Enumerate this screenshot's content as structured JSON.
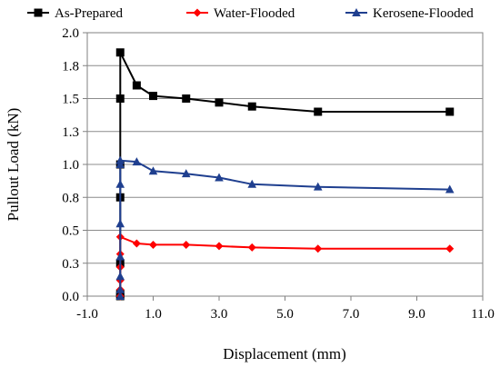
{
  "chart_data": {
    "type": "line",
    "xlabel": "Displacement   (mm)",
    "ylabel": "Pullout  Load (kN)",
    "xlim": [
      -1.0,
      11.0
    ],
    "ylim": [
      0.0,
      2.0
    ],
    "xticks": [
      -1.0,
      1.0,
      3.0,
      5.0,
      7.0,
      9.0,
      11.0
    ],
    "xtick_labels": [
      "-1.0",
      "1.0",
      "3.0",
      "5.0",
      "7.0",
      "9.0",
      "11.0"
    ],
    "yticks": [
      0.0,
      0.25,
      0.5,
      0.75,
      1.0,
      1.25,
      1.5,
      1.75,
      2.0
    ],
    "ytick_labels": [
      "0.0",
      "0.3",
      "0.5",
      "0.8",
      "1.0",
      "1.3",
      "1.5",
      "1.8",
      "2.0"
    ],
    "grid": "horizontal",
    "legend_position": "top",
    "series": [
      {
        "name": "As-Prepared",
        "color": "#000000",
        "marker": "square",
        "x": [
          0,
          0,
          0,
          0,
          0,
          0,
          0,
          0.5,
          1,
          2,
          3,
          4,
          6,
          10
        ],
        "y": [
          0.0,
          0.02,
          0.25,
          0.75,
          1.0,
          1.5,
          1.85,
          1.6,
          1.52,
          1.5,
          1.47,
          1.44,
          1.4,
          1.4
        ]
      },
      {
        "name": "Water-Flooded",
        "color": "#ff0000",
        "marker": "diamond",
        "x": [
          0,
          0,
          0,
          0,
          0,
          0,
          0.5,
          1,
          2,
          3,
          4,
          6,
          10
        ],
        "y": [
          0.0,
          0.05,
          0.12,
          0.22,
          0.32,
          0.45,
          0.4,
          0.39,
          0.39,
          0.38,
          0.37,
          0.36,
          0.36
        ]
      },
      {
        "name": "Kerosene-Flooded",
        "color": "#1f3f8f",
        "marker": "triangle",
        "x": [
          0,
          0,
          0,
          0,
          0,
          0,
          0,
          0,
          0.5,
          1,
          2,
          3,
          4,
          6,
          10
        ],
        "y": [
          0.0,
          0.05,
          0.15,
          0.3,
          0.55,
          0.85,
          1.0,
          1.03,
          1.02,
          0.95,
          0.93,
          0.9,
          0.85,
          0.83,
          0.81
        ]
      }
    ]
  }
}
